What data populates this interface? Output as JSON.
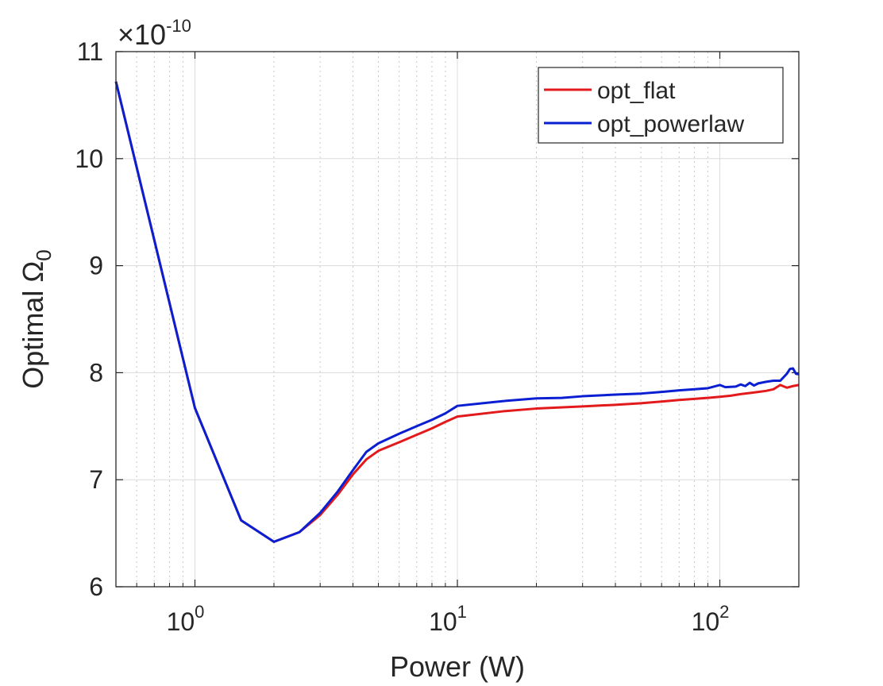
{
  "chart_data": {
    "type": "line",
    "xscale": "log",
    "xlim": [
      0.5,
      200
    ],
    "ylim": [
      6,
      11
    ],
    "grid": true,
    "xlabel": "Power (W)",
    "ylabel_text": "Optimal Ω",
    "ylabel_sub": "0",
    "y_multiplier_prefix": "×10",
    "y_multiplier_exp": "-10",
    "legend_position": "top-right",
    "x_ticks": [
      {
        "value": 1,
        "base": "10",
        "exp": "0"
      },
      {
        "value": 10,
        "base": "10",
        "exp": "1"
      },
      {
        "value": 100,
        "base": "10",
        "exp": "2"
      }
    ],
    "y_ticks": [
      {
        "value": 6,
        "label": "6"
      },
      {
        "value": 7,
        "label": "7"
      },
      {
        "value": 8,
        "label": "8"
      },
      {
        "value": 9,
        "label": "9"
      },
      {
        "value": 10,
        "label": "10"
      },
      {
        "value": 11,
        "label": "11"
      }
    ],
    "series": [
      {
        "name": "opt_flat",
        "color": "#e31a1c",
        "points": [
          [
            0.5,
            10.72
          ],
          [
            1,
            7.67
          ],
          [
            1.5,
            6.62
          ],
          [
            2,
            6.42
          ],
          [
            2.5,
            6.51
          ],
          [
            3,
            6.67
          ],
          [
            3.5,
            6.86
          ],
          [
            4,
            7.05
          ],
          [
            4.5,
            7.19
          ],
          [
            5,
            7.27
          ],
          [
            6,
            7.35
          ],
          [
            7,
            7.42
          ],
          [
            8,
            7.48
          ],
          [
            9,
            7.54
          ],
          [
            10,
            7.59
          ],
          [
            15,
            7.64
          ],
          [
            20,
            7.665
          ],
          [
            30,
            7.685
          ],
          [
            40,
            7.7
          ],
          [
            50,
            7.715
          ],
          [
            60,
            7.73
          ],
          [
            70,
            7.745
          ],
          [
            80,
            7.755
          ],
          [
            90,
            7.765
          ],
          [
            100,
            7.775
          ],
          [
            110,
            7.785
          ],
          [
            120,
            7.8
          ],
          [
            130,
            7.81
          ],
          [
            140,
            7.82
          ],
          [
            150,
            7.83
          ],
          [
            160,
            7.845
          ],
          [
            170,
            7.885
          ],
          [
            180,
            7.86
          ],
          [
            190,
            7.875
          ],
          [
            200,
            7.885
          ]
        ]
      },
      {
        "name": "opt_powerlaw",
        "color": "#0a1fd1",
        "points": [
          [
            0.5,
            10.72
          ],
          [
            1,
            7.67
          ],
          [
            1.5,
            6.62
          ],
          [
            2,
            6.42
          ],
          [
            2.5,
            6.51
          ],
          [
            3,
            6.69
          ],
          [
            3.5,
            6.89
          ],
          [
            4,
            7.09
          ],
          [
            4.5,
            7.26
          ],
          [
            5,
            7.34
          ],
          [
            6,
            7.43
          ],
          [
            7,
            7.5
          ],
          [
            8,
            7.56
          ],
          [
            9,
            7.62
          ],
          [
            10,
            7.69
          ],
          [
            15,
            7.735
          ],
          [
            20,
            7.76
          ],
          [
            25,
            7.765
          ],
          [
            30,
            7.78
          ],
          [
            40,
            7.795
          ],
          [
            50,
            7.805
          ],
          [
            60,
            7.82
          ],
          [
            70,
            7.835
          ],
          [
            80,
            7.845
          ],
          [
            90,
            7.855
          ],
          [
            100,
            7.885
          ],
          [
            105,
            7.865
          ],
          [
            115,
            7.87
          ],
          [
            120,
            7.89
          ],
          [
            125,
            7.875
          ],
          [
            130,
            7.905
          ],
          [
            135,
            7.88
          ],
          [
            140,
            7.9
          ],
          [
            150,
            7.915
          ],
          [
            160,
            7.925
          ],
          [
            170,
            7.925
          ],
          [
            180,
            7.99
          ],
          [
            185,
            8.035
          ],
          [
            190,
            8.04
          ],
          [
            195,
            7.99
          ],
          [
            200,
            7.985
          ]
        ]
      }
    ]
  }
}
